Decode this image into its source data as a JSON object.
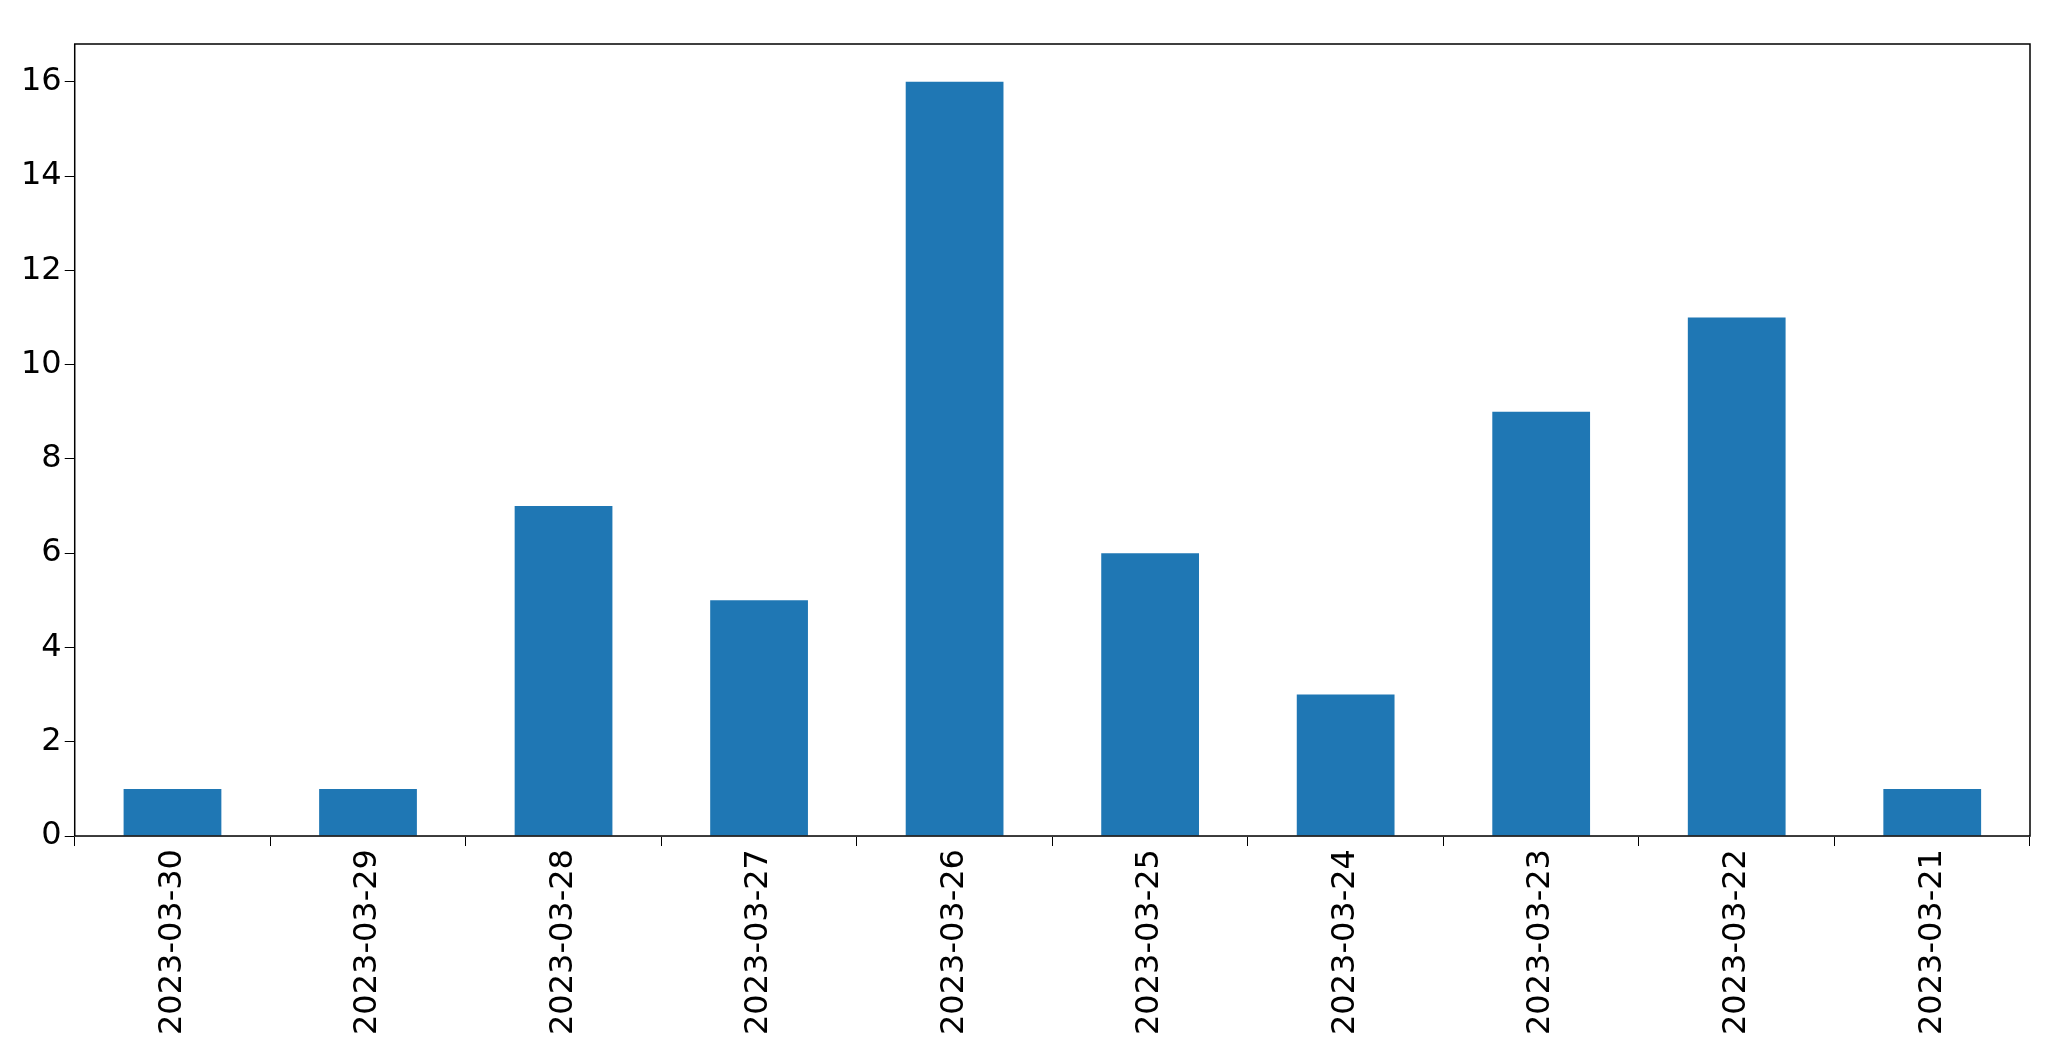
{
  "chart_data": {
    "type": "bar",
    "categories": [
      "2023-03-30",
      "2023-03-29",
      "2023-03-28",
      "2023-03-27",
      "2023-03-26",
      "2023-03-25",
      "2023-03-24",
      "2023-03-23",
      "2023-03-22",
      "2023-03-21"
    ],
    "values": [
      1,
      1,
      7,
      5,
      16,
      6,
      3,
      9,
      11,
      1
    ],
    "color": "#1f77b4",
    "ylim": [
      0,
      16.8
    ],
    "yticks": [
      0,
      2,
      4,
      6,
      8,
      10,
      12,
      14,
      16
    ],
    "grid": false,
    "legend": false
  }
}
